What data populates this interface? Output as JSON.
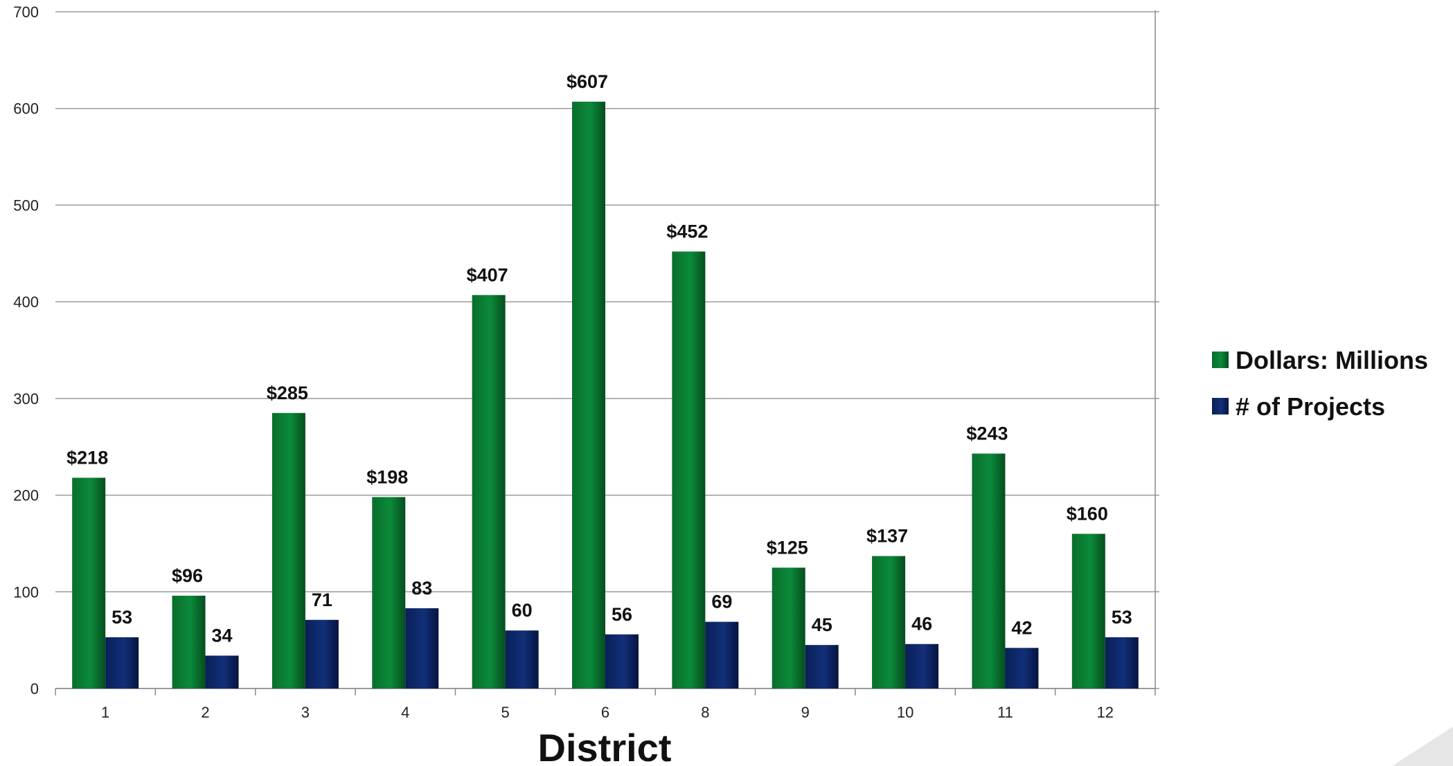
{
  "chart_data": {
    "type": "bar",
    "xlabel": "District",
    "ylabel": "",
    "ylim": [
      0,
      700
    ],
    "yticks": [
      0,
      100,
      200,
      300,
      400,
      500,
      600,
      700
    ],
    "grid": true,
    "legend_position": "right",
    "categories": [
      "1",
      "2",
      "3",
      "4",
      "5",
      "6",
      "8",
      "9",
      "10",
      "11",
      "12"
    ],
    "series": [
      {
        "name": "Dollars: Millions",
        "color": "#0a7a32",
        "values": [
          218,
          96,
          285,
          198,
          407,
          607,
          452,
          125,
          137,
          243,
          160
        ],
        "labels": [
          "$218",
          "$96",
          "$285",
          "$198",
          "$407",
          "$607",
          "$452",
          "$125",
          "$137",
          "$243",
          "$160"
        ]
      },
      {
        "name": "# of Projects",
        "color": "#0d2566",
        "values": [
          53,
          34,
          71,
          83,
          60,
          56,
          69,
          45,
          46,
          42,
          53
        ],
        "labels": [
          "53",
          "34",
          "71",
          "83",
          "60",
          "56",
          "69",
          "45",
          "46",
          "42",
          "53"
        ]
      }
    ]
  }
}
